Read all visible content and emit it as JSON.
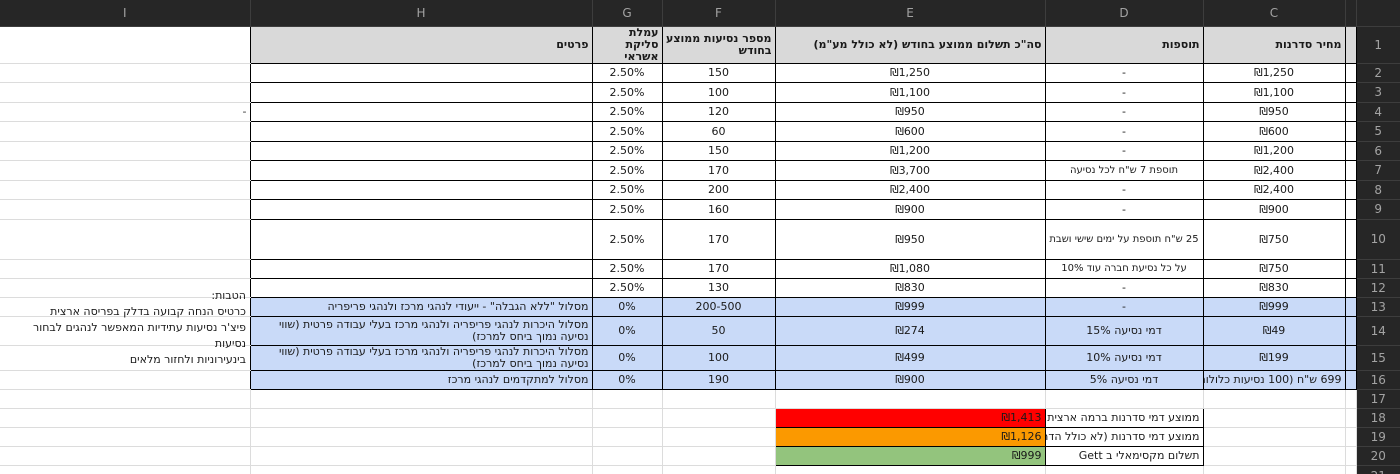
{
  "columns": {
    "letters": [
      "I",
      "H",
      "G",
      "F",
      "E",
      "D",
      "C",
      "",
      ""
    ]
  },
  "row_numbers": [
    1,
    2,
    3,
    4,
    5,
    6,
    7,
    8,
    9,
    10,
    11,
    12,
    13,
    14,
    15,
    16,
    17,
    18,
    19,
    20,
    21
  ],
  "header": {
    "details": "פרטים",
    "credit_fee": "עמלת סליקת אשראי",
    "trips": "מספר נסיעות ממוצע בחודש",
    "total": "סה\"כ תשלום ממוצע בחודש (לא כולל מע\"מ)",
    "additions": "תוספות",
    "price": "מחיר סדרנות"
  },
  "rows": [
    {
      "n": 2,
      "g": "2.50%",
      "f": "150",
      "e": "₪1,250",
      "d": "-",
      "c": "₪1,250"
    },
    {
      "n": 3,
      "g": "2.50%",
      "f": "100",
      "e": "₪1,100",
      "d": "-",
      "c": "₪1,100"
    },
    {
      "n": 4,
      "i": "-",
      "g": "2.50%",
      "f": "120",
      "e": "₪950",
      "d": "-",
      "c": "₪950"
    },
    {
      "n": 5,
      "g": "2.50%",
      "f": "60",
      "e": "₪600",
      "d": "-",
      "c": "₪600"
    },
    {
      "n": 6,
      "g": "2.50%",
      "f": "150",
      "e": "₪1,200",
      "d": "-",
      "c": "₪1,200"
    },
    {
      "n": 7,
      "g": "2.50%",
      "f": "170",
      "e": "₪3,700",
      "d": "תוספת 7 ש\"ח לכל נסיעה",
      "c": "₪2,400"
    },
    {
      "n": 8,
      "g": "2.50%",
      "f": "200",
      "e": "₪2,400",
      "d": "-",
      "c": "₪2,400"
    },
    {
      "n": 9,
      "g": "2.50%",
      "f": "160",
      "e": "₪900",
      "d": "-",
      "c": "₪900"
    },
    {
      "n": 10,
      "tall": true,
      "g": "2.50%",
      "f": "170",
      "e": "₪950",
      "d": "25 ש\"ח תוספת על ימים שישי ושבת",
      "c": "₪750"
    },
    {
      "n": 11,
      "g": "2.50%",
      "f": "170",
      "e": "₪1,080",
      "d": "על כל נסיעת חברה עוד 10%",
      "c": "₪750"
    },
    {
      "n": 12,
      "g": "2.50%",
      "f": "130",
      "e": "₪830",
      "d": "-",
      "c": "₪830"
    },
    {
      "n": 13,
      "hl": true,
      "h": "מסלול \"ללא הגבלה\" - ייעודי לנהגי מרכז ולנהגי פריפריה",
      "g": "0%",
      "f": "200-500",
      "e": "₪999",
      "d": "-",
      "c": "₪999"
    },
    {
      "n": 14,
      "hl": true,
      "tall": true,
      "h": "מסלול היכרות לנהגי פריפריה ולנהגי מרכז בעלי עבודה פרטית (שווי נסיעה נמוך ביחס למרכז)",
      "g": "0%",
      "f": "50",
      "e": "₪274",
      "d": "דמי נסיעה 15%",
      "c": "₪49"
    },
    {
      "n": 15,
      "hl": true,
      "tall": true,
      "h": "מסלול היכרות לנהגי פריפריה ולנהגי מרכז בעלי עבודה פרטית (שווי נסיעה נמוך ביחס למרכז)",
      "g": "0%",
      "f": "100",
      "e": "₪499",
      "d": "דמי נסיעה 10%",
      "c": "₪199"
    },
    {
      "n": 16,
      "hl": true,
      "h": "מסלול למתקדמים לנהגי מרכז",
      "g": "0%",
      "f": "190",
      "e": "₪900",
      "d": "דמי נסיעה 5%",
      "c": "699 ש\"ח (100 נסיעות כלולות)"
    }
  ],
  "notes": {
    "lines": [
      "הטבות:",
      "כרטיס הנחה קבועה בדלק בפריסה ארצית",
      "פיצ'ר נסיעות עתידיות המאפשר לנהגים לבחור נסיעות",
      "בינעירוניות ולחזור מלאים"
    ]
  },
  "summary": {
    "rows": [
      {
        "n": 18,
        "label": "ממוצע דמי סדרנות ברמה ארצית",
        "value": "₪1,413",
        "color": "#ff0000"
      },
      {
        "n": 19,
        "label": "ממוצע דמי סדרנות (לא כולל הדר)",
        "value": "₪1,126",
        "color": "#fb9900"
      },
      {
        "n": 20,
        "label": "תשלום מקסימאלי ב Gett",
        "value": "₪999",
        "color": "#93c47d"
      }
    ]
  },
  "colors": {
    "highlight": "#c9daf8",
    "header_fill": "#d9d9d9",
    "chrome_bg": "#262626",
    "chrome_text": "#a3a3a3",
    "grid_black": "#000000",
    "grid_light": "#dcdcdc"
  }
}
